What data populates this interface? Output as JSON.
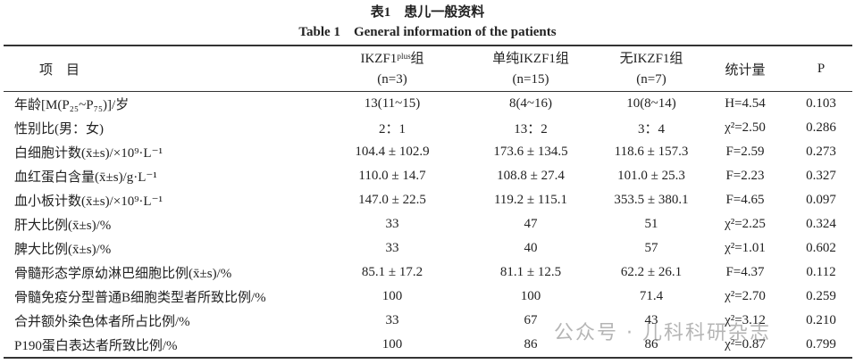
{
  "header": {
    "title": "表1　患儿一般资料",
    "subtitle": "Table 1　General information of the patients"
  },
  "table": {
    "columns": [
      {
        "name": "项　目",
        "n": null
      },
      {
        "name": "IKZF1ᵖˡᵘˢ组",
        "n": "(n=3)"
      },
      {
        "name": "单纯IKZF1组",
        "n": "(n=15)"
      },
      {
        "name": "无IKZF1组",
        "n": "(n=7)"
      },
      {
        "name": "统计量",
        "n": null
      },
      {
        "name": "P",
        "n": null
      }
    ],
    "rows": [
      [
        "年龄[M(P₂₅~P₇₅)]/岁",
        "13(11~15)",
        "8(4~16)",
        "10(8~14)",
        "H=4.54",
        "0.103"
      ],
      [
        "性别比(男：女)",
        "2：1",
        "13：2",
        "3：4",
        "χ²=2.50",
        "0.286"
      ],
      [
        "白细胞计数(x̄±s)/×10⁹·L⁻¹",
        "104.4 ± 102.9",
        "173.6 ± 134.5",
        "118.6 ± 157.3",
        "F=2.59",
        "0.273"
      ],
      [
        "血红蛋白含量(x̄±s)/g·L⁻¹",
        "110.0 ± 14.7",
        "108.8 ± 27.4",
        "101.0 ± 25.3",
        "F=2.23",
        "0.327"
      ],
      [
        "血小板计数(x̄±s)/×10⁹·L⁻¹",
        "147.0 ± 22.5",
        "119.2 ± 115.1",
        "353.5 ± 380.1",
        "F=4.65",
        "0.097"
      ],
      [
        "肝大比例(x̄±s)/%",
        "33",
        "47",
        "51",
        "χ²=2.25",
        "0.324"
      ],
      [
        "脾大比例(x̄±s)/%",
        "33",
        "40",
        "57",
        "χ²=1.01",
        "0.602"
      ],
      [
        "骨髓形态学原幼淋巴细胞比例(x̄±s)/%",
        "85.1 ± 17.2",
        "81.1 ± 12.5",
        "62.2 ± 26.1",
        "F=4.37",
        "0.112"
      ],
      [
        "骨髓免疫分型普通B细胞类型者所致比例/%",
        "100",
        "100",
        "71.4",
        "χ²=2.70",
        "0.259"
      ],
      [
        "合并额外染色体者所占比例/%",
        "33",
        "67",
        "43",
        "χ²=3.12",
        "0.210"
      ],
      [
        "P190蛋白表达者所致比例/%",
        "100",
        "86",
        "86",
        "χ²=0.87",
        "0.799"
      ]
    ]
  },
  "watermark": "公众号 · 儿科科研杂志"
}
